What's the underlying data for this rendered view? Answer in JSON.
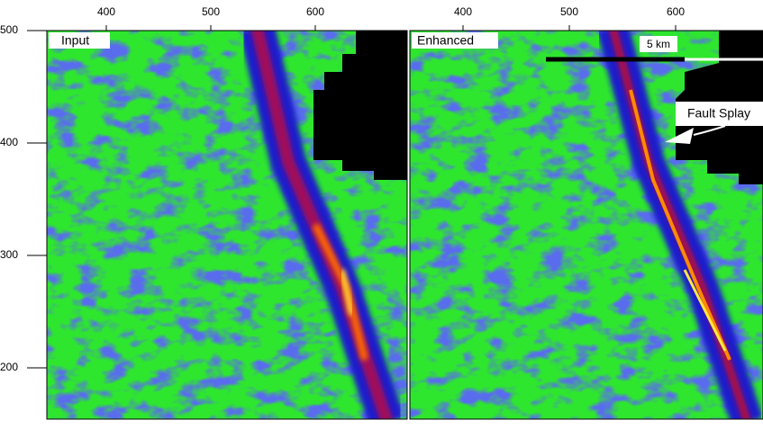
{
  "panels": [
    {
      "label": "Input"
    },
    {
      "label": "Enhanced"
    }
  ],
  "x_ticks": [
    400,
    500,
    600
  ],
  "y_ticks": [
    500,
    400,
    300,
    200
  ],
  "annotations": {
    "scale_bar": "5 km",
    "fault": "Fault Splay"
  }
}
